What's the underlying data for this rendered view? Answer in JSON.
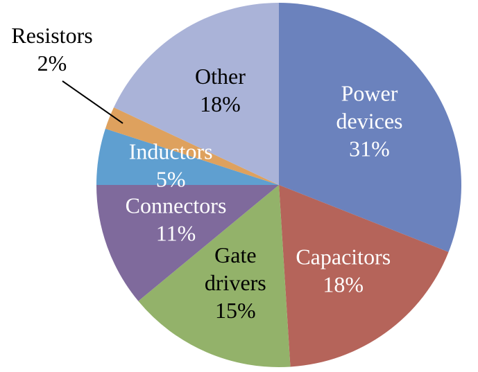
{
  "chart_data": {
    "type": "pie",
    "categories": [
      "Power devices",
      "Capacitors",
      "Gate drivers",
      "Connectors",
      "Inductors",
      "Resistors",
      "Other"
    ],
    "values": [
      31,
      18,
      15,
      11,
      5,
      2,
      18
    ],
    "value_labels": [
      "31%",
      "18%",
      "15%",
      "11%",
      "5%",
      "2%",
      "18%"
    ],
    "colors": [
      "#6b82bd",
      "#b5645a",
      "#93b26a",
      "#7f6a9c",
      "#5f9fd0",
      "#dea15e",
      "#aab3d8"
    ]
  }
}
